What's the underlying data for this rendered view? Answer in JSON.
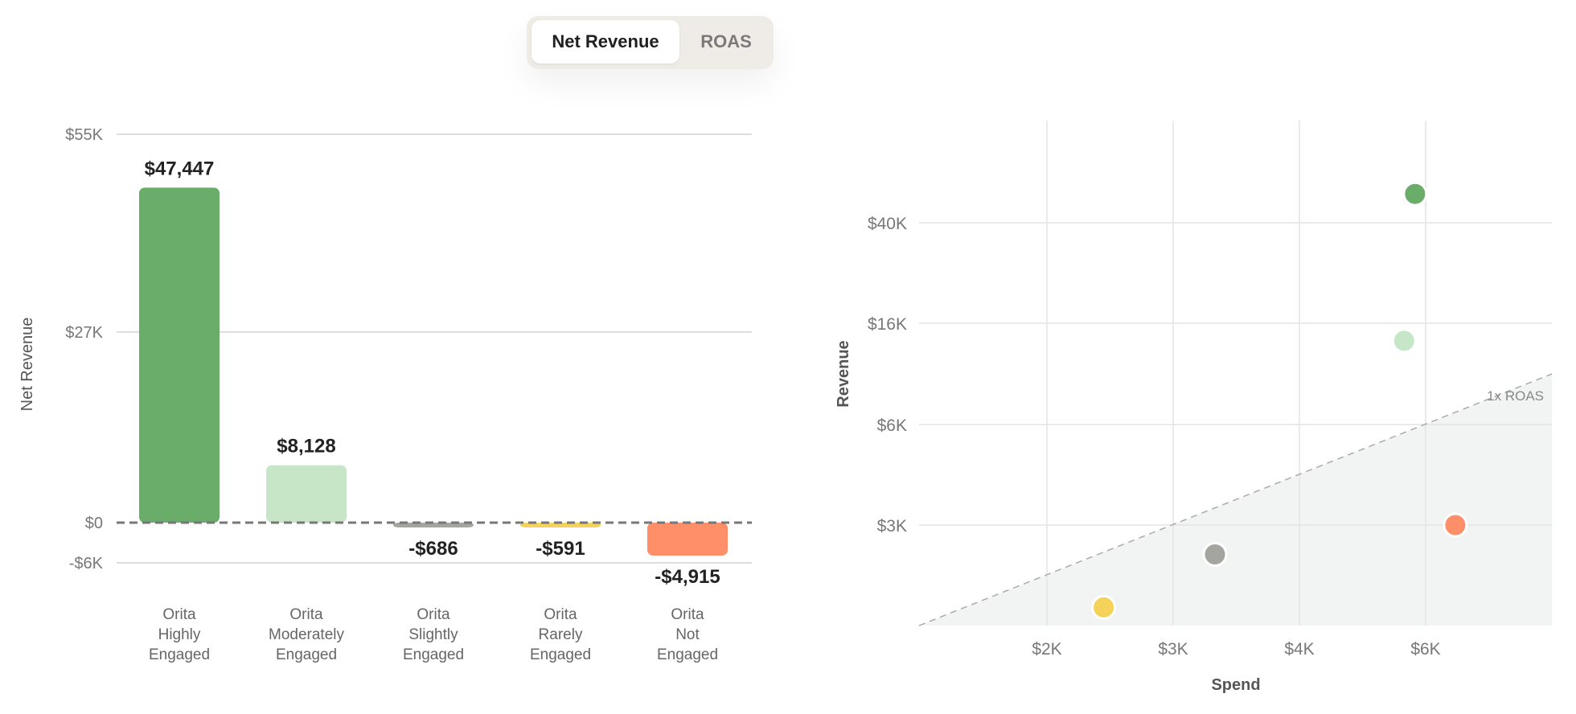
{
  "toggle": {
    "options": [
      "Net Revenue",
      "ROAS"
    ],
    "active": "Net Revenue"
  },
  "chart_data": [
    {
      "type": "bar",
      "ylabel": "Net Revenue",
      "yticks": [
        55000,
        27000,
        0,
        -6000
      ],
      "ytick_labels": [
        "$55K",
        "$27K",
        "$0",
        "-$6K"
      ],
      "ylim": [
        -6000,
        55000
      ],
      "categories": [
        [
          "Orita",
          "Highly",
          "Engaged"
        ],
        [
          "Orita",
          "Moderately",
          "Engaged"
        ],
        [
          "Orita",
          "Slightly",
          "Engaged"
        ],
        [
          "Orita",
          "Rarely",
          "Engaged"
        ],
        [
          "Orita",
          "Not",
          "Engaged"
        ]
      ],
      "values": [
        47447,
        8128,
        -686,
        -591,
        -4915
      ],
      "value_labels": [
        "$47,447",
        "$8,128",
        "-$686",
        "-$591",
        "-$4,915"
      ],
      "colors": [
        "#6aac6a",
        "#c6e6c7",
        "#a5a5a0",
        "#f5d259",
        "#fe8f68"
      ],
      "zero_line": "dashed",
      "grid": true
    },
    {
      "type": "scatter",
      "xlabel": "Spend",
      "ylabel": "Revenue",
      "xticks": [
        2000,
        3000,
        4000,
        6000
      ],
      "xtick_labels": [
        "$2K",
        "$3K",
        "$4K",
        "$6K"
      ],
      "yticks": [
        3000,
        6000,
        16000,
        40000
      ],
      "ytick_labels": [
        "$3K",
        "$6K",
        "$16K",
        "$40K"
      ],
      "reference_line": "1x ROAS",
      "grid": true,
      "points": [
        {
          "x": 5800,
          "y": 52000,
          "color": "#6aac6a"
        },
        {
          "x": 5600,
          "y": 13500,
          "color": "#c6e6c7"
        },
        {
          "x": 3300,
          "y": 2450,
          "color": "#a5a5a0"
        },
        {
          "x": 2400,
          "y": 1700,
          "color": "#f5d259"
        },
        {
          "x": 6600,
          "y": 3000,
          "color": "#fe8f68"
        }
      ]
    }
  ]
}
